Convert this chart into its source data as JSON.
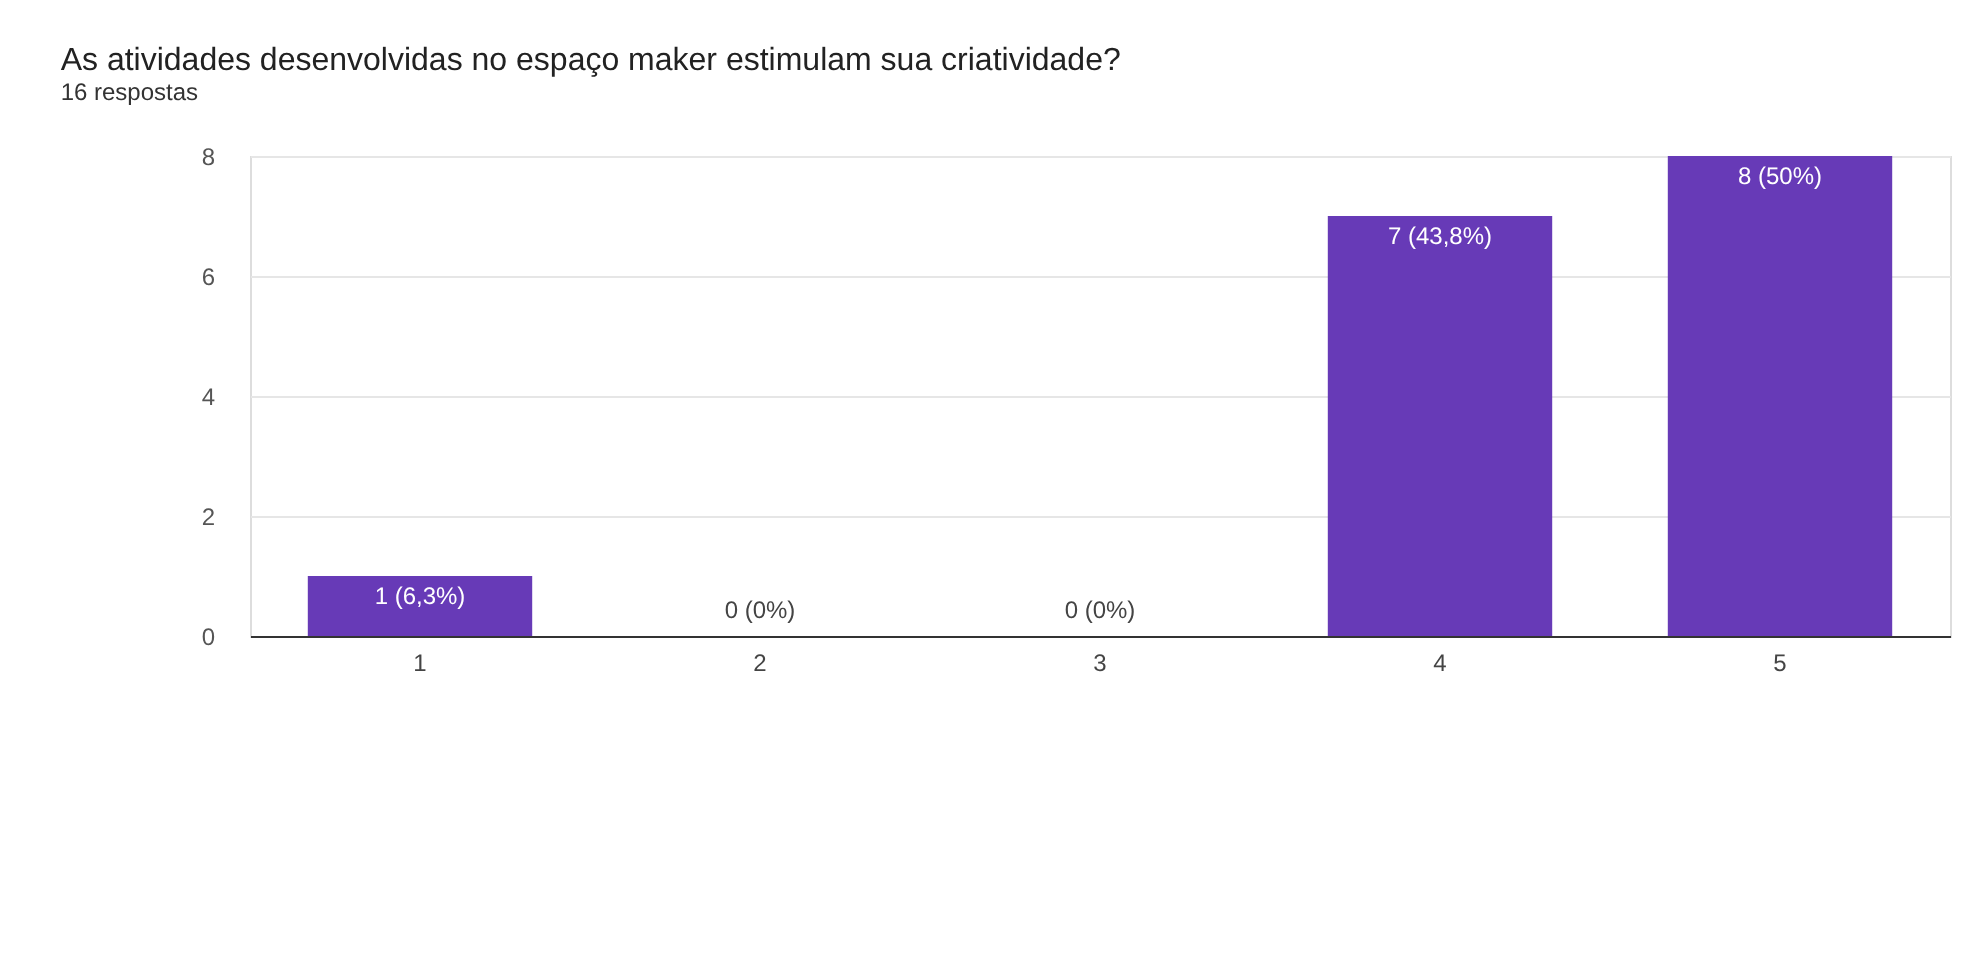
{
  "chart_data": {
    "type": "bar",
    "title": "As atividades desenvolvidas no espaço maker estimulam sua criatividade?",
    "subtitle": "16 respostas",
    "categories": [
      "1",
      "2",
      "3",
      "4",
      "5"
    ],
    "values": [
      1,
      0,
      0,
      7,
      8
    ],
    "value_labels": [
      "1 (6,3%)",
      "0 (0%)",
      "0 (0%)",
      "7 (43,8%)",
      "8 (50%)"
    ],
    "color": "#673ab7",
    "ylim": [
      0,
      8
    ],
    "yticks": [
      0,
      2,
      4,
      6,
      8
    ],
    "grid": "y"
  }
}
